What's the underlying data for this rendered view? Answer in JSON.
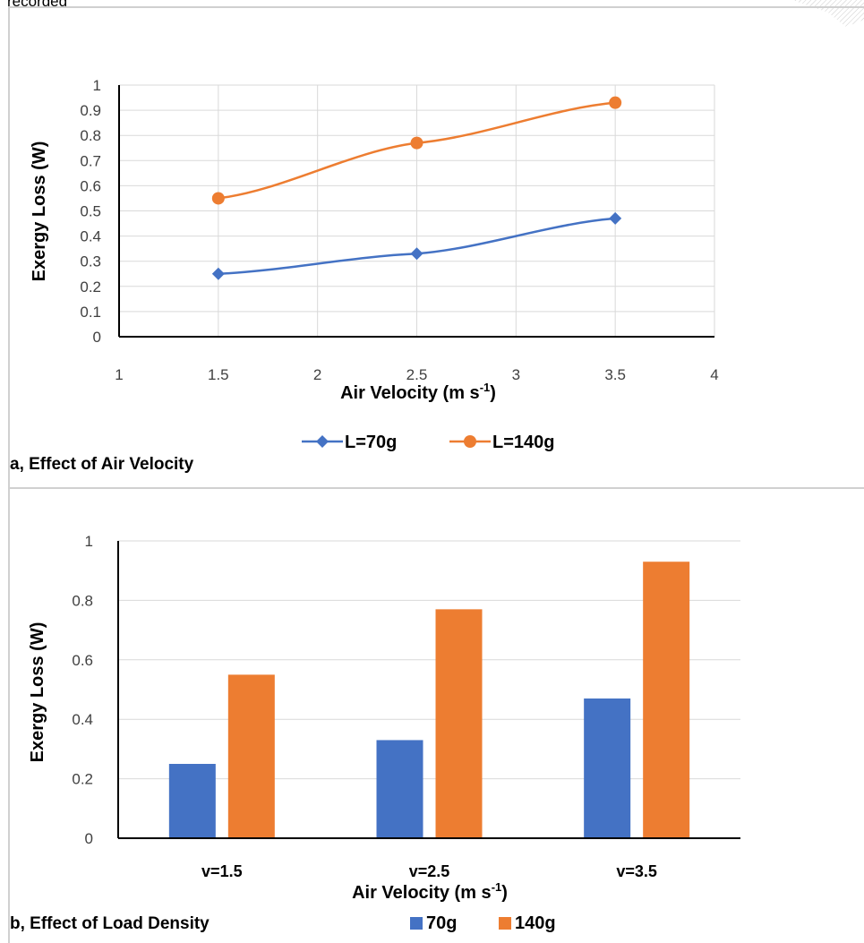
{
  "header": {
    "partial_text": "recorded"
  },
  "captions": {
    "a": "a, Effect of Air Velocity",
    "b": "b, Effect of Load Density"
  },
  "colors": {
    "blue": "#4472C4",
    "orange": "#ED7D31",
    "grid": "#d9d9d9"
  },
  "chart_data": [
    {
      "type": "line",
      "xlabel": "Air Velocity (m s-1)",
      "ylabel": "Exergy Loss (W)",
      "xlim": [
        1,
        4
      ],
      "ylim": [
        0,
        1
      ],
      "x_ticks": [
        "1",
        "1.5",
        "2",
        "2.5",
        "3",
        "3.5",
        "4"
      ],
      "y_ticks": [
        "0",
        "0.1",
        "0.2",
        "0.3",
        "0.4",
        "0.5",
        "0.6",
        "0.7",
        "0.8",
        "0.9",
        "1"
      ],
      "grid": true,
      "legend_position": "bottom",
      "series": [
        {
          "name": "L=70g",
          "marker": "diamond",
          "color": "#4472C4",
          "x": [
            1.5,
            2.5,
            3.5
          ],
          "y": [
            0.25,
            0.33,
            0.47
          ]
        },
        {
          "name": "L=140g",
          "marker": "circle",
          "color": "#ED7D31",
          "x": [
            1.5,
            2.5,
            3.5
          ],
          "y": [
            0.55,
            0.77,
            0.93
          ]
        }
      ]
    },
    {
      "type": "bar",
      "xlabel": "Air Velocity (m s-1)",
      "ylabel": "Exergy Loss (W)",
      "categories": [
        "v=1.5",
        "v=2.5",
        "v=3.5"
      ],
      "ylim": [
        0,
        1
      ],
      "y_ticks": [
        "0",
        "0.2",
        "0.4",
        "0.6",
        "0.8",
        "1"
      ],
      "grid": true,
      "legend_position": "bottom",
      "series": [
        {
          "name": "70g",
          "color": "#4472C4",
          "values": [
            0.25,
            0.33,
            0.47
          ]
        },
        {
          "name": "140g",
          "color": "#ED7D31",
          "values": [
            0.55,
            0.77,
            0.93
          ]
        }
      ]
    }
  ]
}
